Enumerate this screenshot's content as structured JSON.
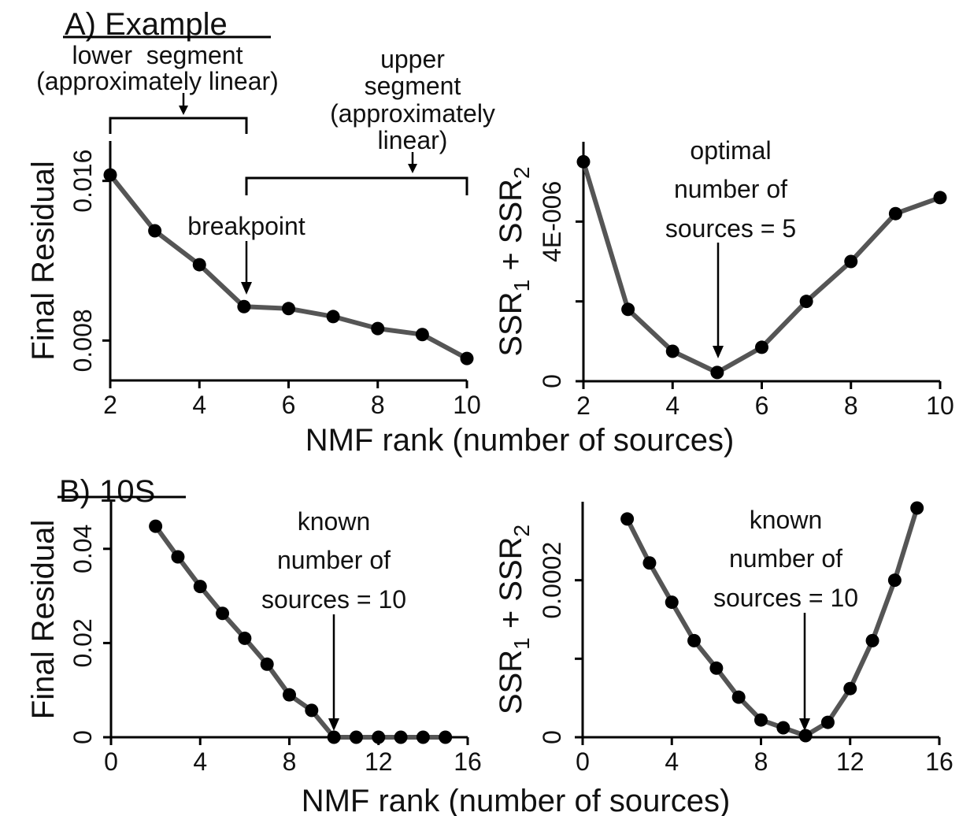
{
  "section_a": {
    "label": "A) Example"
  },
  "section_b": {
    "label": "B) 10S"
  },
  "shared_xlabel": "NMF rank (number of sources)",
  "annotations": {
    "lower_segment": [
      "lower  segment",
      "(approximately linear)"
    ],
    "upper_segment": [
      "upper",
      "segment",
      "(approximately",
      "linear)"
    ],
    "breakpoint": "breakpoint",
    "optimal": [
      "optimal",
      "number of",
      "sources = 5"
    ],
    "known_b1": [
      "known",
      "number of",
      "sources = 10"
    ],
    "known_b2": [
      "known",
      "number of",
      "sources = 10"
    ]
  },
  "colors": {
    "line": "#555555",
    "marker": "#000000",
    "axis": "#000000"
  },
  "chart_data": [
    {
      "id": "a1",
      "type": "line",
      "xlabel": "",
      "ylabel": "Final Residual",
      "xlim": [
        2,
        10
      ],
      "ylim": [
        0.006,
        0.018
      ],
      "xticks": [
        2,
        4,
        6,
        8,
        10
      ],
      "xtick_labels": [
        "2",
        "4",
        "6",
        "8",
        "10"
      ],
      "yticks": [
        0.008,
        0.016
      ],
      "ytick_labels": [
        "0.008",
        "0.016"
      ],
      "x": [
        2,
        3,
        4,
        5,
        6,
        7,
        8,
        9,
        10
      ],
      "y": [
        0.0163,
        0.0135,
        0.0118,
        0.0097,
        0.0096,
        0.0092,
        0.0086,
        0.0083,
        0.0071
      ]
    },
    {
      "id": "a2",
      "type": "line",
      "xlabel": "",
      "ylabel": "SSR1 + SSR2",
      "xlim": [
        2,
        10
      ],
      "ylim": [
        0,
        6e-06
      ],
      "xticks": [
        2,
        4,
        6,
        8,
        10
      ],
      "xtick_labels": [
        "2",
        "4",
        "6",
        "8",
        "10"
      ],
      "yticks": [
        0,
        2e-06,
        4e-06
      ],
      "ytick_labels": [
        "0",
        "",
        "4E-006"
      ],
      "x": [
        2,
        3,
        4,
        5,
        6,
        7,
        8,
        9,
        10
      ],
      "y": [
        5.5e-06,
        1.8e-06,
        7.5e-07,
        2.2e-07,
        8.5e-07,
        2e-06,
        3e-06,
        4.2e-06,
        4.6e-06
      ]
    },
    {
      "id": "b1",
      "type": "line",
      "xlabel": "",
      "ylabel": "Final Residual",
      "xlim": [
        0,
        16
      ],
      "ylim": [
        0,
        0.05
      ],
      "xticks": [
        0,
        4,
        8,
        12,
        16
      ],
      "xtick_labels": [
        "0",
        "4",
        "8",
        "12",
        "16"
      ],
      "yticks": [
        0,
        0.02,
        0.04
      ],
      "ytick_labels": [
        "0",
        "0.02",
        "0.04"
      ],
      "x": [
        2,
        3,
        4,
        5,
        6,
        7,
        8,
        9,
        10,
        11,
        12,
        13,
        14,
        15
      ],
      "y": [
        0.0448,
        0.0383,
        0.032,
        0.0263,
        0.021,
        0.0155,
        0.009,
        0.0057,
        0,
        0,
        0,
        0,
        0,
        0
      ]
    },
    {
      "id": "b2",
      "type": "line",
      "xlabel": "",
      "ylabel": "SSR1 + SSR2",
      "xlim": [
        0,
        16
      ],
      "ylim": [
        0,
        0.0003
      ],
      "xticks": [
        0,
        4,
        8,
        12,
        16
      ],
      "xtick_labels": [
        "0",
        "4",
        "8",
        "12",
        "16"
      ],
      "yticks": [
        0,
        0.0001,
        0.0002
      ],
      "ytick_labels": [
        "0",
        "",
        "0.0002"
      ],
      "x": [
        2,
        3,
        4,
        5,
        6,
        7,
        8,
        9,
        10,
        11,
        12,
        13,
        14,
        15
      ],
      "y": [
        0.000278,
        0.000222,
        0.000172,
        0.000123,
        8.8e-05,
        5.1e-05,
        2.2e-05,
        1.2e-05,
        2e-06,
        1.9e-05,
        6.2e-05,
        0.000123,
        0.0002,
        0.000292
      ]
    }
  ]
}
